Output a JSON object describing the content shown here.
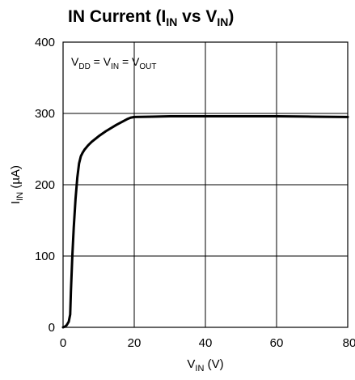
{
  "chart_data": {
    "type": "line",
    "title": {
      "main": "IN Current (I",
      "sub1": "IN",
      "mid": " vs V",
      "sub2": "IN",
      "end": ")"
    },
    "annotation": {
      "p1": "V",
      "s1": "DD",
      "p2": " = V",
      "s2": "IN",
      "p3": " = V",
      "s3": "OUT"
    },
    "xlabel": {
      "main": "V",
      "sub": "IN",
      "unit": " (V)"
    },
    "ylabel": {
      "main": "I",
      "sub": "IN",
      "unit": " (µA)"
    },
    "xlim": [
      0,
      80
    ],
    "ylim": [
      0,
      400
    ],
    "x_ticks": [
      "0",
      "20",
      "40",
      "60",
      "80"
    ],
    "y_ticks": [
      "0",
      "100",
      "200",
      "300",
      "400"
    ],
    "grid": true,
    "series": [
      {
        "x": [
          0,
          0.5,
          1,
          1.6,
          2.0,
          2.2,
          2.6,
          3.0,
          3.5,
          4.0,
          4.5,
          5.0,
          5.5,
          6,
          7,
          8,
          10,
          12,
          15,
          18,
          19,
          20,
          25,
          30,
          40,
          50,
          60,
          70,
          80
        ],
        "y": [
          0,
          1,
          3,
          8,
          18,
          50,
          100,
          140,
          180,
          210,
          230,
          240,
          245,
          249,
          255,
          260,
          268,
          275,
          284,
          292,
          294,
          295,
          295.5,
          296,
          296,
          296,
          296,
          295.5,
          295
        ]
      }
    ]
  }
}
